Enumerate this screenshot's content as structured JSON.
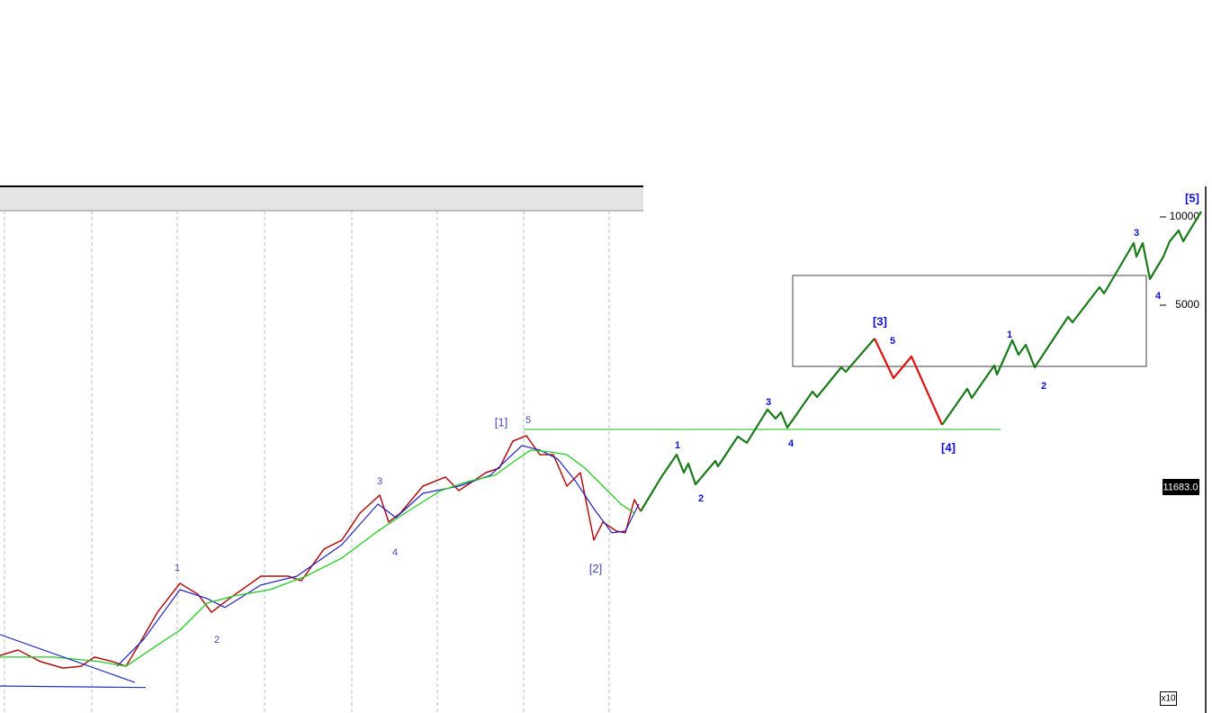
{
  "chart_data": {
    "type": "line",
    "log_y": true,
    "xlim": [
      0,
      1340
    ],
    "xticks": [
      5,
      102,
      197,
      294,
      391,
      486,
      582,
      677
    ],
    "ylim": [
      203,
      12718
    ],
    "yticks": [
      10000,
      5000
    ],
    "grid": true,
    "series": [
      {
        "color": "#b01010",
        "x": [
          0,
          20,
          45,
          70,
          90,
          105,
          125,
          140,
          155,
          175,
          200,
          220,
          235,
          255,
          290,
          320,
          335,
          360,
          380,
          400,
          422,
          432,
          445,
          470,
          495,
          510,
          540,
          555,
          570,
          585,
          600,
          615,
          630,
          645,
          660,
          670,
          685,
          695,
          705,
          712
        ],
        "values": [
          319,
          333,
          304,
          289,
          293,
          315,
          304,
          293,
          350,
          448,
          562,
          516,
          448,
          499,
          595,
          595,
          574,
          736,
          790,
          976,
          1125,
          910,
          976,
          1207,
          1296,
          1165,
          1342,
          1390,
          1719,
          1794,
          1545,
          1545,
          1207,
          1342,
          790,
          910,
          848,
          836,
          1086,
          990
        ]
      },
      {
        "color": "#2020c0",
        "x": [
          130,
          160,
          200,
          230,
          250,
          290,
          330,
          380,
          420,
          440,
          470,
          510,
          545,
          580,
          600,
          620,
          640,
          660,
          680,
          695,
          710
        ],
        "values": [
          293,
          363,
          535,
          499,
          465,
          555,
          595,
          762,
          1048,
          942,
          1140,
          1207,
          1314,
          1660,
          1602,
          1492,
          1251,
          1011,
          836,
          848,
          1048
        ]
      },
      {
        "color": "#22cc22",
        "x": [
          0,
          60,
          110,
          140,
          170,
          200,
          230,
          260,
          300,
          340,
          380,
          420,
          450,
          490,
          520,
          550,
          575,
          590,
          610,
          630,
          650,
          670,
          690,
          705
        ],
        "values": [
          315,
          315,
          304,
          293,
          338,
          389,
          481,
          509,
          535,
          595,
          686,
          848,
          976,
          1165,
          1251,
          1314,
          1492,
          1602,
          1580,
          1545,
          1390,
          1207,
          1048,
          976
        ]
      },
      {
        "color": "#44cc44",
        "x": [
          582,
          1112
        ],
        "values": [
          1884,
          1884
        ]
      },
      {
        "color": "#2030c0",
        "x": [
          0,
          150
        ],
        "values": [
          376,
          258
        ]
      },
      {
        "color": "#2030c0",
        "x": [
          0,
          162
        ],
        "values": [
          251,
          248
        ]
      },
      {
        "color": "#1a7a1a",
        "x": [
          712,
          735,
          752,
          760,
          765,
          773,
          795,
          798,
          820,
          830,
          853,
          862,
          868,
          875,
          903,
          908,
          935,
          940,
          972
        ],
        "values": [
          990,
          1296,
          1545,
          1342,
          1440,
          1224,
          1471,
          1410,
          1781,
          1695,
          2202,
          2051,
          2156,
          1911,
          2536,
          2430,
          3069,
          2963,
          3848
        ]
      },
      {
        "color": "#e01010",
        "x": [
          972,
          993,
          1013,
          1047
        ],
        "values": [
          3848,
          2820,
          3342,
          1952
        ]
      },
      {
        "color": "#1a7a1a",
        "x": [
          1047,
          1075,
          1080,
          1105,
          1108,
          1125,
          1132,
          1140,
          1150,
          1187,
          1192,
          1222,
          1227,
          1260,
          1263,
          1270,
          1278,
          1290,
          1293,
          1300,
          1310,
          1315,
          1335
        ],
        "values": [
          1952,
          2591,
          2413,
          3112,
          2901,
          3795,
          3389,
          3664,
          3069,
          4560,
          4372,
          5760,
          5483,
          8144,
          7327,
          8144,
          6139,
          7070,
          7327,
          8262,
          8994,
          8262,
          10430
        ]
      }
    ],
    "zone": {
      "x": [
        881,
        1274
      ],
      "y": [
        3091,
        6315
      ],
      "color": "#808080"
    },
    "annotations": [
      {
        "text": "1",
        "x": 197,
        "y": 634,
        "color": "#4848b0",
        "bold": false
      },
      {
        "text": "2",
        "x": 241,
        "y": 360,
        "color": "#4848b0",
        "bold": false
      },
      {
        "text": "3",
        "x": 422,
        "y": 1251,
        "color": "#4848b0",
        "bold": false
      },
      {
        "text": "4",
        "x": 439,
        "y": 715,
        "color": "#4848b0",
        "bold": false
      },
      {
        "text": "[1]",
        "x": 557,
        "y": 1980,
        "color": "#4848b0",
        "bold": false
      },
      {
        "text": "5",
        "x": 587,
        "y": 2022,
        "color": "#4848b0",
        "bold": false
      },
      {
        "text": "[2]",
        "x": 662,
        "y": 626,
        "color": "#4848b0",
        "bold": false
      },
      {
        "text": "1",
        "x": 753,
        "y": 1660,
        "color": "#1010d0",
        "bold": true
      },
      {
        "text": "2",
        "x": 779,
        "y": 1093,
        "color": "#1010d0",
        "bold": true
      },
      {
        "text": "3",
        "x": 854,
        "y": 2330,
        "color": "#1010d0",
        "bold": true
      },
      {
        "text": "4",
        "x": 879,
        "y": 1683,
        "color": "#1010d0",
        "bold": true
      },
      {
        "text": "[3]",
        "x": 978,
        "y": 4372,
        "color": "#1010d0",
        "bold": true
      },
      {
        "text": "5",
        "x": 992,
        "y": 3769,
        "color": "#1010d0",
        "bold": true
      },
      {
        "text": "[4]",
        "x": 1054,
        "y": 1625,
        "color": "#1010d0",
        "bold": true
      },
      {
        "text": "1",
        "x": 1122,
        "y": 3960,
        "color": "#1010d0",
        "bold": true
      },
      {
        "text": "2",
        "x": 1160,
        "y": 2647,
        "color": "#1010d0",
        "bold": true
      },
      {
        "text": "3",
        "x": 1263,
        "y": 8806,
        "color": "#1010d0",
        "bold": true
      },
      {
        "text": "4",
        "x": 1287,
        "y": 5368,
        "color": "#1010d0",
        "bold": true
      },
      {
        "text": "[5]",
        "x": 1325,
        "y": 11520,
        "color": "#1010d0",
        "bold": true
      }
    ],
    "price_box": "11683.0",
    "scale_note": "x10"
  }
}
